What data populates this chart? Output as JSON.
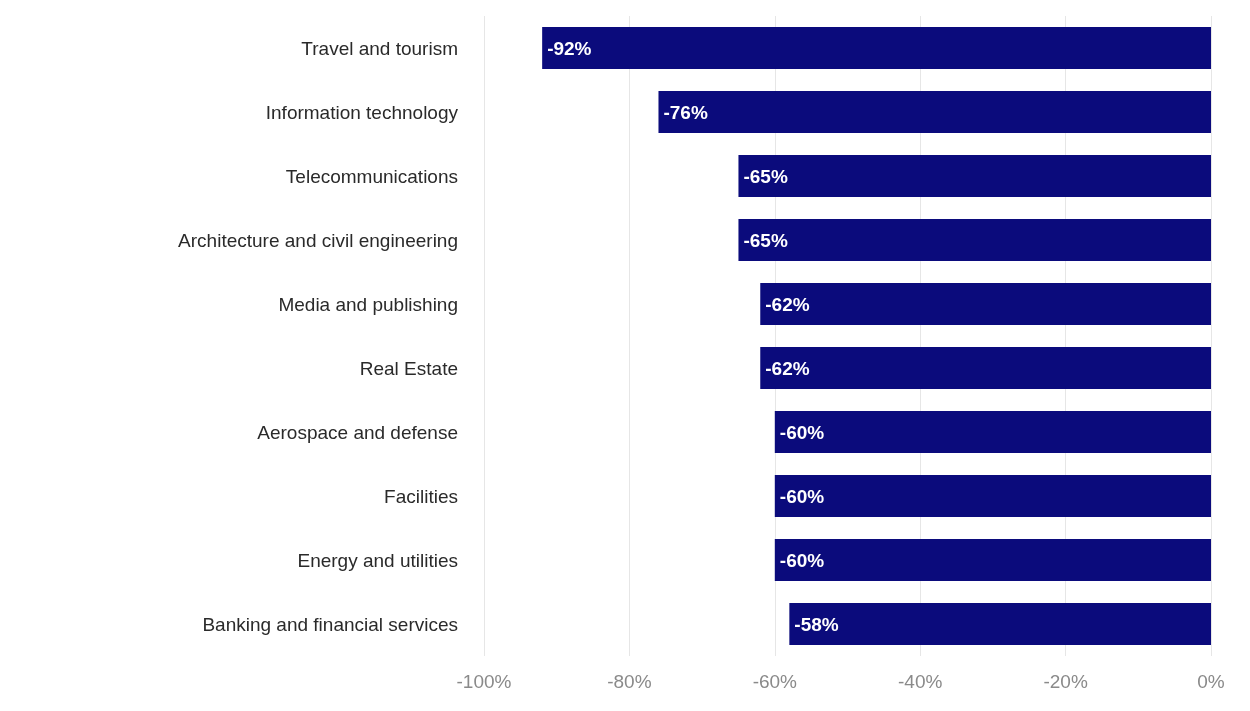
{
  "chart_data": {
    "type": "bar",
    "orientation": "horizontal",
    "categories": [
      "Travel and tourism",
      "Information technology",
      "Telecommunications",
      "Architecture and civil engineering",
      "Media and publishing",
      "Real Estate",
      "Aerospace and defense",
      "Facilities",
      "Energy and utilities",
      "Banking and financial services"
    ],
    "values": [
      -92,
      -76,
      -65,
      -65,
      -62,
      -62,
      -60,
      -60,
      -60,
      -58
    ],
    "value_labels": [
      "-92%",
      "-76%",
      "-65%",
      "-65%",
      "-62%",
      "-62%",
      "-60%",
      "-60%",
      "-60%",
      "-58%"
    ],
    "color": "#0b0b7c",
    "xlim": [
      -100,
      0
    ],
    "xticks": [
      {
        "value": -100,
        "label": "-100%"
      },
      {
        "value": -80,
        "label": "-80%"
      },
      {
        "value": -60,
        "label": "-60%"
      },
      {
        "value": -40,
        "label": "-40%"
      },
      {
        "value": -20,
        "label": "-20%"
      },
      {
        "value": 0,
        "label": "0%"
      }
    ],
    "grid": "x"
  }
}
